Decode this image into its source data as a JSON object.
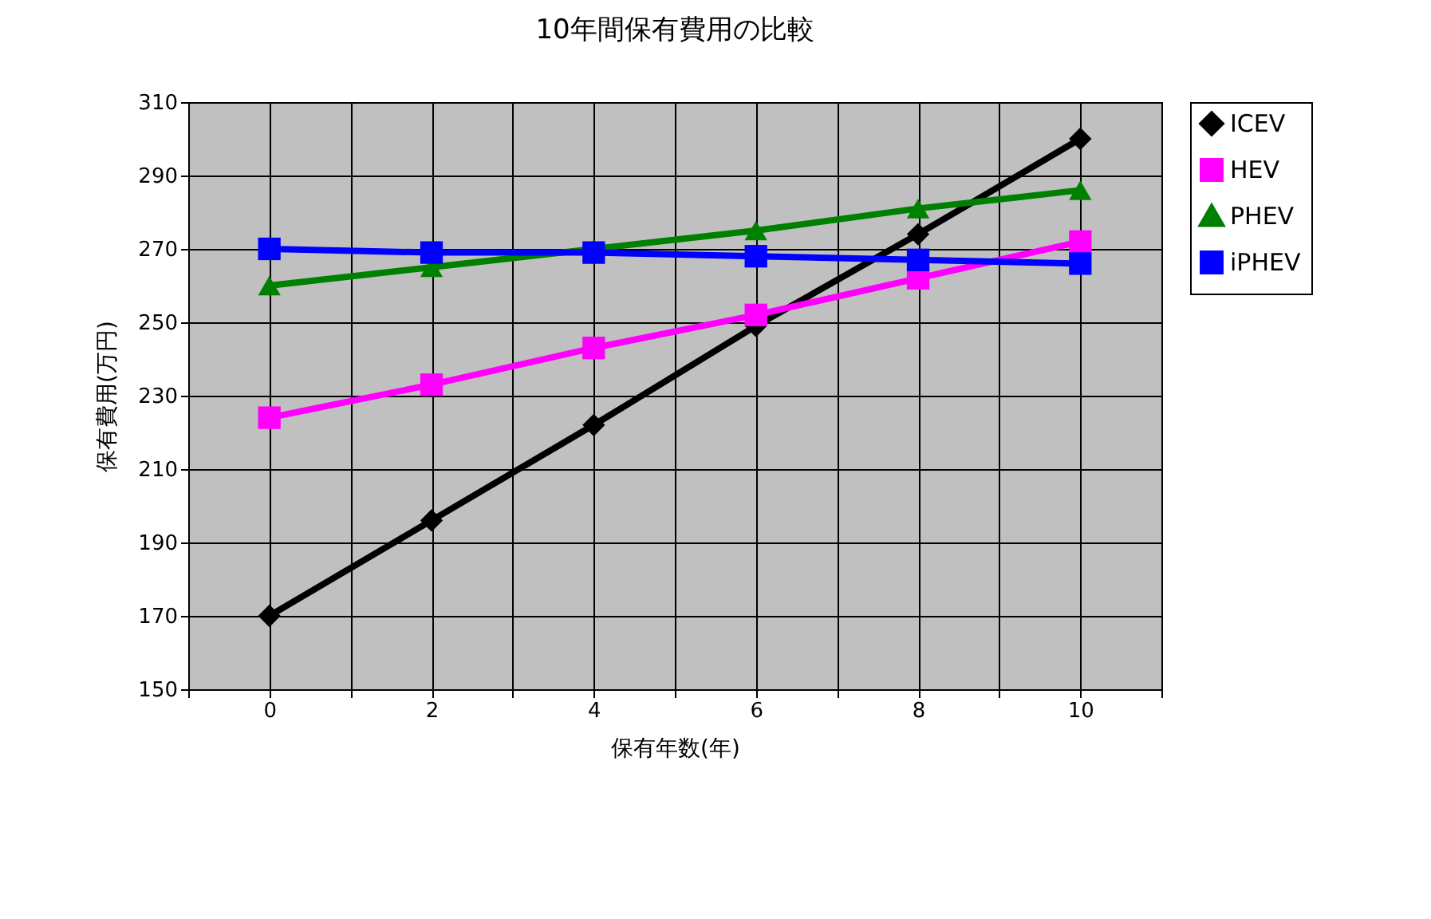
{
  "chart_data": {
    "type": "line",
    "title": "10年間保有費用の比較",
    "xlabel": "保有年数(年)",
    "ylabel": "保有費用(万円)",
    "x": [
      0,
      2,
      4,
      6,
      8,
      10
    ],
    "series": [
      {
        "name": "ICEV",
        "color": "#000000",
        "marker": "diamond",
        "values": [
          170,
          196,
          222,
          249,
          274,
          300
        ]
      },
      {
        "name": "HEV",
        "color": "#ff00ff",
        "marker": "square",
        "values": [
          224,
          233,
          243,
          252,
          262,
          272
        ]
      },
      {
        "name": "PHEV",
        "color": "#008000",
        "marker": "triangle",
        "values": [
          260,
          265,
          270,
          275,
          281,
          286
        ]
      },
      {
        "name": "iPHEV",
        "color": "#0000ff",
        "marker": "square",
        "values": [
          270,
          269,
          269,
          268,
          267,
          266
        ]
      }
    ],
    "xlim": [
      -1,
      11
    ],
    "xticks": [
      {
        "value": -1,
        "label": null
      },
      0,
      {
        "value": 1,
        "label": null
      },
      2,
      {
        "value": 3,
        "label": null
      },
      4,
      {
        "value": 5,
        "label": null
      },
      6,
      {
        "value": 7,
        "label": null
      },
      8,
      {
        "value": 9,
        "label": null
      },
      10,
      {
        "value": 11,
        "label": null
      }
    ],
    "ylim": [
      150,
      310
    ],
    "yticks": [
      150,
      170,
      190,
      210,
      230,
      250,
      270,
      290,
      310
    ],
    "grid": true,
    "legend": "right",
    "line_style": "solid"
  }
}
